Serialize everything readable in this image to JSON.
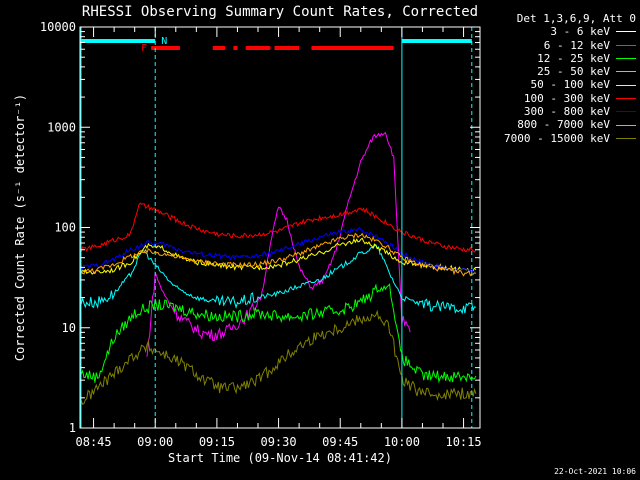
{
  "chart_data": {
    "type": "line",
    "title": "RHESSI Observing Summary Count Rates, Corrected",
    "xlabel": "Start Time (09-Nov-14 08:41:42)",
    "ylabel": "Corrected Count Rate (s⁻¹ detector⁻¹)",
    "xlim": [
      "08:41:42",
      "10:19:00"
    ],
    "ylim": [
      1,
      10000
    ],
    "yscale": "log",
    "grid": false,
    "legend_position": "outside-right",
    "x_tick_labels": [
      "08:45",
      "09:00",
      "09:15",
      "09:30",
      "09:45",
      "10:00",
      "10:15"
    ],
    "y_tick_labels": [
      "1",
      "10",
      "100",
      "1000",
      "10000"
    ],
    "legend_title": "Det 1,3,6,9, Att 0",
    "series": [
      {
        "name": "3 - 6 keV",
        "color": "#000000",
        "x": [
          "08:52",
          "08:55",
          "08:58",
          "09:00",
          "09:02",
          "09:05",
          "09:08",
          "09:11",
          "09:14",
          "09:17",
          "09:20",
          "09:23",
          "09:26",
          "09:28",
          "09:30",
          "09:32",
          "09:35",
          "09:38",
          "09:41",
          "09:44",
          "09:47",
          "09:50",
          "09:53",
          "09:56",
          "09:58",
          "10:00",
          "10:02"
        ],
        "y": [
          4,
          5,
          4.5,
          50,
          30,
          22,
          16,
          13,
          12,
          12,
          13,
          15,
          22,
          70,
          200,
          80,
          30,
          22,
          28,
          60,
          150,
          320,
          550,
          650,
          500,
          10,
          3
        ]
      },
      {
        "name": "6 - 12 keV",
        "color": "#ff00ff",
        "x": [
          "08:58",
          "09:00",
          "09:02",
          "09:05",
          "09:08",
          "09:11",
          "09:14",
          "09:17",
          "09:20",
          "09:23",
          "09:26",
          "09:28",
          "09:30",
          "09:32",
          "09:35",
          "09:38",
          "09:41",
          "09:44",
          "09:47",
          "09:50",
          "09:53",
          "09:56",
          "09:58",
          "10:00",
          "10:02"
        ],
        "y": [
          5,
          35,
          22,
          14,
          11,
          9,
          8.5,
          9,
          11,
          14,
          22,
          70,
          160,
          120,
          40,
          25,
          30,
          60,
          180,
          450,
          800,
          900,
          500,
          12,
          9
        ]
      },
      {
        "name": "12 - 25 keV",
        "color": "#00ff00",
        "x": [
          "08:42",
          "08:46",
          "08:50",
          "08:55",
          "09:00",
          "09:05",
          "09:10",
          "09:15",
          "09:20",
          "09:25",
          "09:30",
          "09:35",
          "09:40",
          "09:45",
          "09:50",
          "09:54",
          "09:57",
          "10:00",
          "10:05",
          "10:10",
          "10:15",
          "10:18"
        ],
        "y": [
          3.5,
          3.2,
          8,
          14,
          17,
          16,
          14,
          13,
          13,
          14,
          13,
          13,
          14,
          15,
          18,
          24,
          26,
          5,
          3.3,
          3.3,
          3.3,
          3.3
        ]
      },
      {
        "name": "25 - 50 keV",
        "color": "#00ffff",
        "x": [
          "08:42",
          "08:46",
          "08:50",
          "08:54",
          "08:57",
          "09:00",
          "09:05",
          "09:10",
          "09:15",
          "09:20",
          "09:25",
          "09:30",
          "09:35",
          "09:40",
          "09:45",
          "09:50",
          "09:54",
          "09:57",
          "10:00",
          "10:05",
          "10:10",
          "10:15",
          "10:18"
        ],
        "y": [
          18,
          18,
          22,
          34,
          60,
          42,
          25,
          20,
          18,
          18,
          20,
          22,
          26,
          30,
          40,
          55,
          65,
          35,
          20,
          17,
          16,
          16,
          16
        ]
      },
      {
        "name": "50 - 100 keV",
        "color": "#ffff00",
        "x": [
          "08:42",
          "08:46",
          "08:50",
          "08:54",
          "08:58",
          "09:02",
          "09:06",
          "09:10",
          "09:15",
          "09:20",
          "09:25",
          "09:30",
          "09:35",
          "09:40",
          "09:45",
          "09:50",
          "09:55",
          "10:00",
          "10:05",
          "10:10",
          "10:15",
          "10:18"
        ],
        "y": [
          36,
          36,
          38,
          45,
          65,
          62,
          50,
          45,
          42,
          40,
          40,
          42,
          48,
          55,
          68,
          75,
          60,
          45,
          42,
          40,
          38,
          38
        ]
      },
      {
        "name": "100 - 300 keV",
        "color": "#ff0000",
        "x": [
          "08:42",
          "08:46",
          "08:50",
          "08:54",
          "08:56",
          "09:00",
          "09:04",
          "09:08",
          "09:12",
          "09:16",
          "09:20",
          "09:25",
          "09:30",
          "09:35",
          "09:40",
          "09:45",
          "09:50",
          "09:55",
          "10:00",
          "10:05",
          "10:10",
          "10:15",
          "10:18"
        ],
        "y": [
          60,
          65,
          75,
          85,
          170,
          150,
          125,
          105,
          92,
          85,
          82,
          85,
          92,
          110,
          125,
          135,
          155,
          120,
          90,
          75,
          65,
          60,
          60
        ]
      },
      {
        "name": "300 - 800 keV",
        "color": "#0000ff",
        "x": [
          "08:42",
          "08:46",
          "08:50",
          "08:54",
          "08:58",
          "09:02",
          "09:06",
          "09:10",
          "09:15",
          "09:20",
          "09:25",
          "09:30",
          "09:35",
          "09:40",
          "09:45",
          "09:50",
          "09:55",
          "10:00",
          "10:05",
          "10:10",
          "10:15",
          "10:18"
        ],
        "y": [
          40,
          42,
          48,
          60,
          70,
          68,
          60,
          55,
          52,
          50,
          52,
          58,
          68,
          80,
          90,
          95,
          78,
          55,
          45,
          40,
          37,
          37
        ]
      },
      {
        "name": "800 - 7000 keV",
        "color": "#ffa500",
        "x": [
          "08:42",
          "08:46",
          "08:50",
          "08:54",
          "08:58",
          "09:02",
          "09:06",
          "09:10",
          "09:15",
          "09:20",
          "09:25",
          "09:30",
          "09:35",
          "09:40",
          "09:45",
          "09:50",
          "09:55",
          "10:00",
          "10:05",
          "10:10",
          "10:15",
          "10:18"
        ],
        "y": [
          36,
          38,
          43,
          52,
          58,
          55,
          50,
          46,
          44,
          42,
          43,
          47,
          55,
          65,
          78,
          85,
          70,
          50,
          42,
          38,
          35,
          35
        ]
      },
      {
        "name": "7000 - 15000 keV",
        "color": "#808000",
        "x": [
          "08:42",
          "08:46",
          "08:50",
          "08:54",
          "08:58",
          "09:00",
          "09:04",
          "09:08",
          "09:12",
          "09:16",
          "09:20",
          "09:25",
          "09:30",
          "09:35",
          "09:40",
          "09:45",
          "09:50",
          "09:54",
          "09:57",
          "10:00",
          "10:05",
          "10:10",
          "10:15",
          "10:18"
        ],
        "y": [
          1.8,
          2.5,
          3.5,
          5,
          6.5,
          6,
          5,
          4,
          3,
          2.5,
          2.5,
          3,
          4.5,
          6.5,
          8.5,
          10,
          12.5,
          13,
          10,
          3,
          2.2,
          2.2,
          2.2,
          2.2
        ]
      }
    ],
    "annotations": {
      "labels": [
        "F",
        "N"
      ],
      "flare_bars": [
        [
          "08:59",
          "09:06"
        ],
        [
          "09:14",
          "09:17"
        ],
        [
          "09:19",
          "09:20"
        ],
        [
          "09:22",
          "09:28"
        ],
        [
          "09:29",
          "09:35"
        ],
        [
          "09:38",
          "09:58"
        ]
      ],
      "night_bars": [
        [
          "08:42",
          "09:00"
        ],
        [
          "10:00",
          "10:17"
        ]
      ],
      "vertical_lines": [
        "09:00",
        "10:00",
        "10:17"
      ]
    }
  },
  "timestamp": "22-Oct-2021 10:06"
}
